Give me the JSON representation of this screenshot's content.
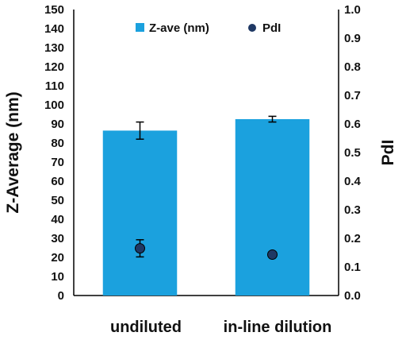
{
  "chart_data": {
    "type": "bar",
    "categories": [
      "undiluted",
      "in-line dilution"
    ],
    "series": [
      {
        "name": "Z-ave (nm)",
        "type": "bar",
        "axis": "left",
        "values": [
          86.5,
          92.5
        ],
        "error": [
          4.5,
          1.5
        ],
        "color": "#1ba1de"
      },
      {
        "name": "PdI",
        "type": "scatter",
        "axis": "right",
        "values": [
          0.165,
          0.143
        ],
        "error": [
          0.03,
          0.005
        ],
        "color": "#1f3864"
      }
    ],
    "ylabel": "Z-Average (nm)",
    "y2label": "PdI",
    "ylim": [
      0,
      150
    ],
    "y2lim": [
      0,
      1.0
    ],
    "yticks": [
      "0",
      "10",
      "20",
      "30",
      "40",
      "50",
      "60",
      "70",
      "80",
      "90",
      "100",
      "110",
      "120",
      "130",
      "140",
      "150"
    ],
    "y2ticks": [
      "0.0",
      "0.1",
      "0.2",
      "0.3",
      "0.4",
      "0.5",
      "0.6",
      "0.7",
      "0.8",
      "0.9",
      "1.0"
    ],
    "grid": false,
    "legend": "top"
  }
}
